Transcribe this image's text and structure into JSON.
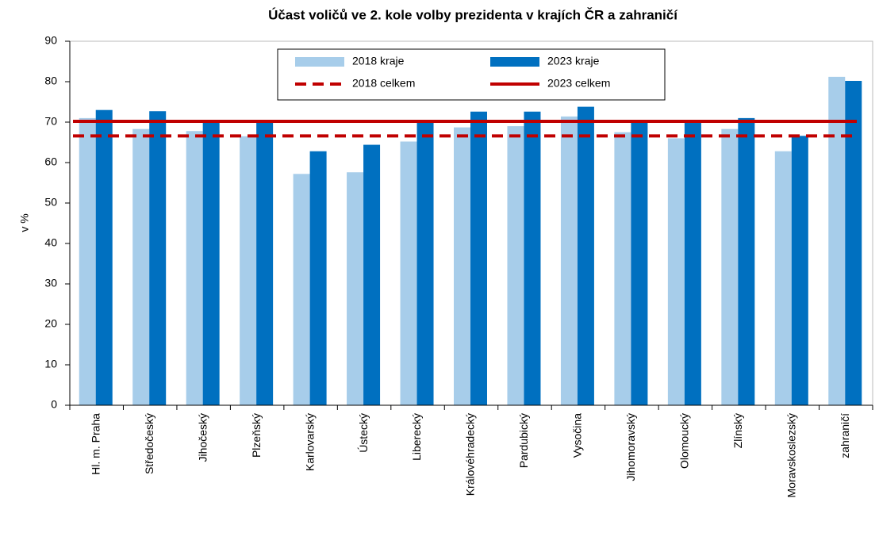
{
  "chart_data": {
    "type": "bar",
    "title": "Účast voličů ve 2. kole volby prezidenta v krajích ČR a zahraničí",
    "y_label": "v %",
    "categories": [
      "Hl. m. Praha",
      "Středočeský",
      "Jihočeský",
      "Plzeňský",
      "Karlovarský",
      "Ústecký",
      "Liberecký",
      "Královéhradecký",
      "Pardubický",
      "Vysočina",
      "Jihomoravský",
      "Olomoucký",
      "Zlínský",
      "Moravskoslezský",
      "zahraničí"
    ],
    "series": [
      {
        "name": "2018 kraje",
        "color": "#a7cdea",
        "values": [
          71.0,
          68.3,
          67.8,
          66.5,
          57.2,
          57.6,
          65.2,
          68.7,
          69.0,
          71.4,
          67.5,
          66.0,
          68.3,
          62.8,
          81.2
        ]
      },
      {
        "name": "2023 kraje",
        "color": "#0070c0",
        "values": [
          73.0,
          72.7,
          70.3,
          70.0,
          62.8,
          64.4,
          70.1,
          72.6,
          72.6,
          73.8,
          70.0,
          69.8,
          71.0,
          66.6,
          80.2
        ]
      }
    ],
    "lines": [
      {
        "name": "2018 celkem",
        "color": "#c00000",
        "value": 66.6,
        "dashed": true
      },
      {
        "name": "2023 celkem",
        "color": "#c00000",
        "value": 70.2,
        "dashed": false
      }
    ],
    "ylim": [
      0,
      90
    ],
    "yticks": [
      0,
      10,
      20,
      30,
      40,
      50,
      60,
      70,
      80,
      90
    ]
  }
}
